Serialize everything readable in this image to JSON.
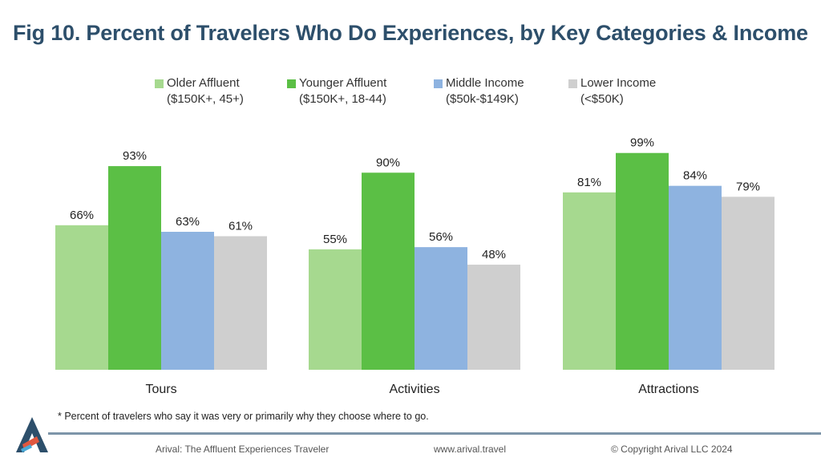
{
  "title": "Fig 10. Percent of Travelers Who Do Experiences, by Key Categories & Income",
  "legend": [
    {
      "line1": "Older Affluent",
      "line2": "($150K+, 45+)"
    },
    {
      "line1": "Younger Affluent",
      "line2": "($150K+, 18-44)"
    },
    {
      "line1": "Middle Income",
      "line2": "($50k-$149K)"
    },
    {
      "line1": "Lower Income",
      "line2": "(<$50K)"
    }
  ],
  "colors": [
    "#a6d98f",
    "#5bbf45",
    "#8eb3e0",
    "#cfcfcf"
  ],
  "chart_data": {
    "type": "bar",
    "title": "Fig 10. Percent of Travelers Who Do Experiences, by Key Categories & Income",
    "categories": [
      "Tours",
      "Activities",
      "Attractions"
    ],
    "series": [
      {
        "name": "Older Affluent ($150K+, 45+)",
        "values": [
          66,
          55,
          81
        ]
      },
      {
        "name": "Younger Affluent ($150K+, 18-44)",
        "values": [
          93,
          90,
          99
        ]
      },
      {
        "name": "Middle Income ($50k-$149K)",
        "values": [
          63,
          56,
          84
        ]
      },
      {
        "name": "Lower Income (<$50K)",
        "values": [
          61,
          48,
          79
        ]
      }
    ],
    "value_suffix": "%",
    "xlabel": "",
    "ylabel": "",
    "ylim": [
      0,
      100
    ],
    "grid": false,
    "legend_position": "top"
  },
  "footnote": "* Percent of travelers who say it was very or primarily why they choose where to go.",
  "footer": {
    "left": "Arival: The  Affluent Experiences Traveler",
    "center": "www.arival.travel",
    "right": "© Copyright Arival LLC 2024"
  },
  "logo_icon": "arival-a-logo-icon"
}
